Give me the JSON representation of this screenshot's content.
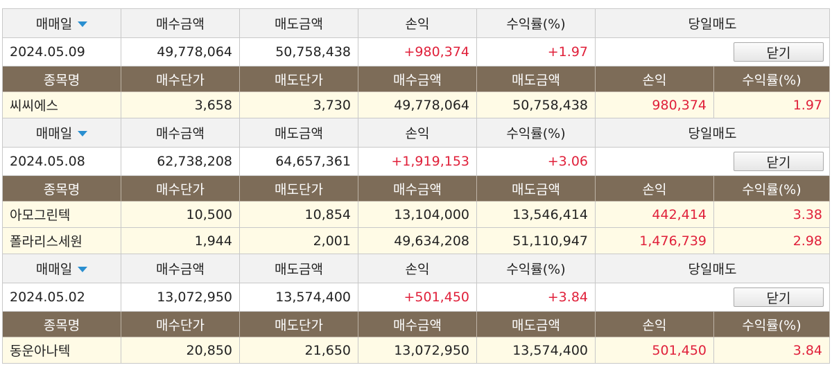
{
  "columns": {
    "trade_date": "매매일",
    "buy_amount": "매수금액",
    "sell_amount": "매도금액",
    "profit": "손익",
    "return_rate": "수익률(%)",
    "day_trade": "당일매도"
  },
  "sub_columns": {
    "name": "종목명",
    "buy_price": "매수단가",
    "sell_price": "매도단가",
    "buy_amount": "매수금액",
    "sell_amount": "매도금액",
    "profit": "손익",
    "return_rate": "수익률(%)"
  },
  "close_label": "닫기",
  "groups": [
    {
      "date": "2024.05.09",
      "buy": "49,778,064",
      "sell": "50,758,438",
      "profit": "+980,374",
      "rate": "+1.97",
      "items": [
        {
          "name": "씨씨에스",
          "buy_price": "3,658",
          "sell_price": "3,730",
          "buy": "49,778,064",
          "sell": "50,758,438",
          "profit": "980,374",
          "rate": "1.97"
        }
      ]
    },
    {
      "date": "2024.05.08",
      "buy": "62,738,208",
      "sell": "64,657,361",
      "profit": "+1,919,153",
      "rate": "+3.06",
      "items": [
        {
          "name": "아모그린텍",
          "buy_price": "10,500",
          "sell_price": "10,854",
          "buy": "13,104,000",
          "sell": "13,546,414",
          "profit": "442,414",
          "rate": "3.38"
        },
        {
          "name": "폴라리스세원",
          "buy_price": "1,944",
          "sell_price": "2,001",
          "buy": "49,634,208",
          "sell": "51,110,947",
          "profit": "1,476,739",
          "rate": "2.98"
        }
      ]
    },
    {
      "date": "2024.05.02",
      "buy": "13,072,950",
      "sell": "13,574,400",
      "profit": "+501,450",
      "rate": "+3.84",
      "items": [
        {
          "name": "동운아나텍",
          "buy_price": "20,850",
          "sell_price": "21,650",
          "buy": "13,072,950",
          "sell": "13,574,400",
          "profit": "501,450",
          "rate": "3.84"
        }
      ]
    }
  ]
}
